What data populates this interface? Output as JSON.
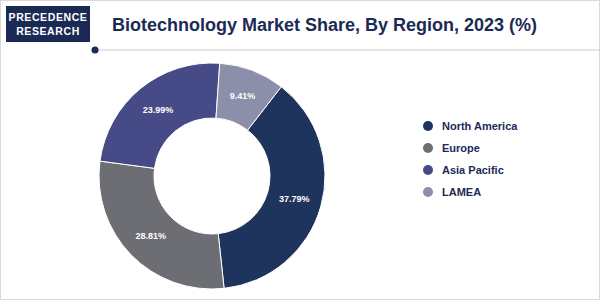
{
  "chart_data": {
    "type": "donut",
    "title": "Biotechnology Market Share, By Region, 2023 (%)",
    "categories": [
      "North America",
      "Europe",
      "Asia Pacific",
      "LAMEA"
    ],
    "values": [
      37.79,
      28.81,
      23.99,
      9.41
    ],
    "value_labels": [
      "37.79%",
      "28.81%",
      "23.99%",
      "9.41%"
    ],
    "colors": [
      "#1e345c",
      "#6c6e73",
      "#464a86",
      "#8b8fa9"
    ],
    "data_labels": true,
    "legend": "right"
  },
  "logo": {
    "lines": [
      "PRECEDENCE",
      "RESEARCH"
    ]
  }
}
